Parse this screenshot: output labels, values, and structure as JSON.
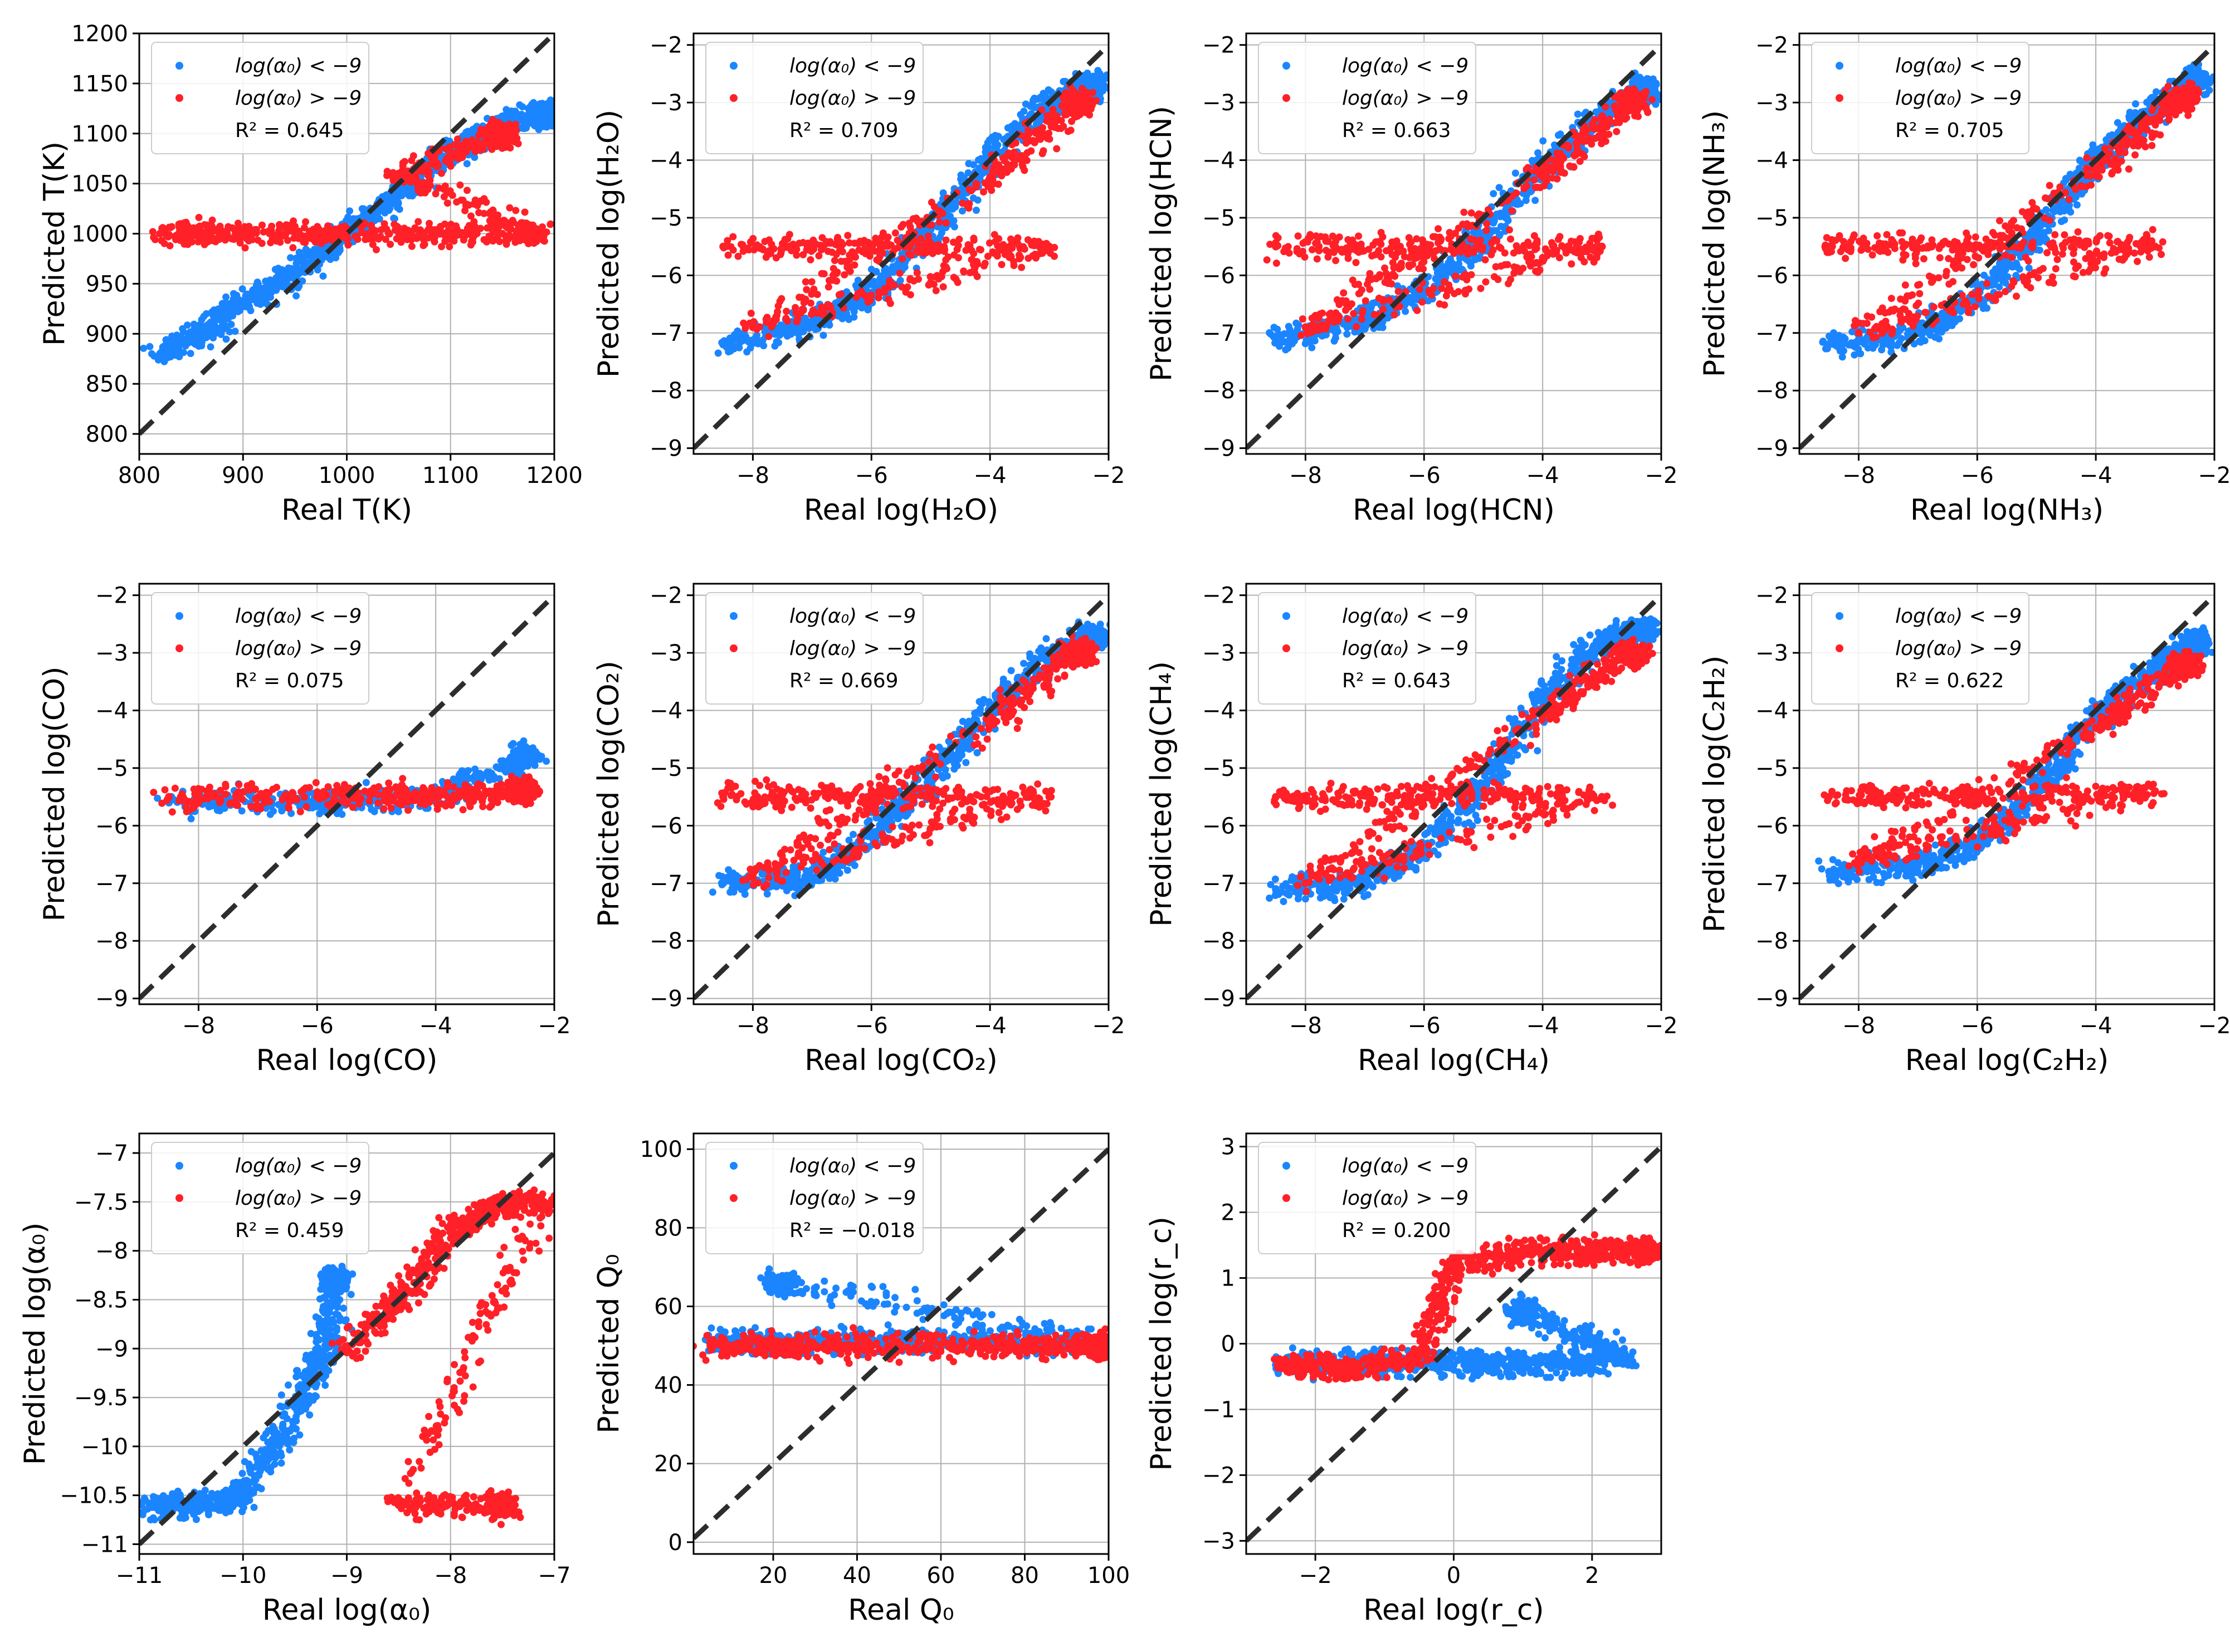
{
  "figure": {
    "legend": {
      "blue_label": "log(α₀) < −9",
      "red_label": "log(α₀) > −9"
    },
    "colors": {
      "blue": "#1a85ff",
      "red": "#ff2028",
      "diag": "#2d2d2d",
      "grid": "#b0b0b0"
    }
  },
  "chart_data": [
    {
      "type": "scatter",
      "id": "T",
      "xlabel": "Real T(K)",
      "ylabel": "Predicted T(K)",
      "xlim": [
        800,
        1200
      ],
      "ylim": [
        780,
        1200
      ],
      "xticks": [
        800,
        900,
        1000,
        1100,
        1200
      ],
      "yticks": [
        800,
        850,
        900,
        950,
        1000,
        1050,
        1100,
        1150,
        1200
      ],
      "r2": "R² = 0.645",
      "series": [
        {
          "name": "log(α₀) < −9",
          "color": "#1a85ff",
          "values": [
            [
              820,
              880
            ],
            [
              860,
              900
            ],
            [
              900,
              930
            ],
            [
              950,
              960
            ],
            [
              1000,
              1000
            ],
            [
              1050,
              1040
            ],
            [
              1100,
              1080
            ],
            [
              1150,
              1110
            ],
            [
              1190,
              1120
            ]
          ]
        },
        {
          "name": "log(α₀) > −9",
          "color": "#ff2028",
          "values": [
            [
              820,
              1000
            ],
            [
              900,
              1000
            ],
            [
              1000,
              1000
            ],
            [
              1100,
              1000
            ],
            [
              1190,
              1000
            ],
            [
              1050,
              1060
            ],
            [
              1150,
              1100
            ]
          ]
        }
      ]
    },
    {
      "type": "scatter",
      "id": "H2O",
      "xlabel": "Real log(H₂O)",
      "ylabel": "Predicted log(H₂O)",
      "xlim": [
        -9,
        -2
      ],
      "ylim": [
        -9.1,
        -1.8
      ],
      "xticks": [
        -8,
        -6,
        -4,
        -2
      ],
      "yticks": [
        -9,
        -8,
        -7,
        -6,
        -5,
        -4,
        -3,
        -2
      ],
      "r2": "R² = 0.709",
      "series": [
        {
          "name": "log(α₀) < −9",
          "color": "#1a85ff",
          "values": [
            [
              -8.5,
              -7.2
            ],
            [
              -7,
              -6.8
            ],
            [
              -6,
              -6.3
            ],
            [
              -5,
              -5.2
            ],
            [
              -4,
              -4
            ],
            [
              -3,
              -3
            ],
            [
              -2.3,
              -2.7
            ]
          ]
        },
        {
          "name": "log(α₀) > −9",
          "color": "#ff2028",
          "values": [
            [
              -8.5,
              -5.5
            ],
            [
              -6,
              -5.5
            ],
            [
              -3,
              -5.5
            ],
            [
              -8,
              -6.9
            ],
            [
              -4,
              -4.3
            ],
            [
              -2.5,
              -3
            ]
          ]
        }
      ]
    },
    {
      "type": "scatter",
      "id": "HCN",
      "xlabel": "Real log(HCN)",
      "ylabel": "Predicted log(HCN)",
      "xlim": [
        -9,
        -2
      ],
      "ylim": [
        -9.1,
        -1.8
      ],
      "xticks": [
        -8,
        -6,
        -4,
        -2
      ],
      "yticks": [
        -9,
        -8,
        -7,
        -6,
        -5,
        -4,
        -3,
        -2
      ],
      "r2": "R² = 0.663",
      "series": [
        {
          "name": "log(α₀) < −9",
          "color": "#1a85ff",
          "values": [
            [
              -8.5,
              -7.1
            ],
            [
              -7,
              -6.8
            ],
            [
              -6,
              -6.3
            ],
            [
              -5,
              -5.3
            ],
            [
              -4,
              -4.1
            ],
            [
              -3,
              -3.2
            ],
            [
              -2.3,
              -2.8
            ]
          ]
        },
        {
          "name": "log(α₀) > −9",
          "color": "#ff2028",
          "values": [
            [
              -8.5,
              -5.5
            ],
            [
              -6,
              -5.5
            ],
            [
              -3,
              -5.5
            ],
            [
              -8,
              -6.9
            ],
            [
              -4,
              -4.3
            ],
            [
              -2.5,
              -3
            ]
          ]
        }
      ]
    },
    {
      "type": "scatter",
      "id": "NH3",
      "xlabel": "Real log(NH₃)",
      "ylabel": "Predicted log(NH₃)",
      "xlim": [
        -9,
        -2
      ],
      "ylim": [
        -9.1,
        -1.8
      ],
      "xticks": [
        -8,
        -6,
        -4,
        -2
      ],
      "yticks": [
        -9,
        -8,
        -7,
        -6,
        -5,
        -4,
        -3,
        -2
      ],
      "r2": "R² = 0.705",
      "series": [
        {
          "name": "log(α₀) < −9",
          "color": "#1a85ff",
          "values": [
            [
              -8.5,
              -7.2
            ],
            [
              -7,
              -7
            ],
            [
              -6,
              -6.4
            ],
            [
              -5,
              -5.3
            ],
            [
              -4,
              -4
            ],
            [
              -3,
              -3.1
            ],
            [
              -2.3,
              -2.6
            ]
          ]
        },
        {
          "name": "log(α₀) > −9",
          "color": "#ff2028",
          "values": [
            [
              -8.5,
              -5.5
            ],
            [
              -6,
              -5.5
            ],
            [
              -3,
              -5.5
            ],
            [
              -8,
              -7
            ],
            [
              -4,
              -4.2
            ],
            [
              -2.5,
              -2.9
            ]
          ]
        }
      ]
    },
    {
      "type": "scatter",
      "id": "CO",
      "xlabel": "Real log(CO)",
      "ylabel": "Predicted log(CO)",
      "xlim": [
        -9,
        -2
      ],
      "ylim": [
        -9.1,
        -1.8
      ],
      "xticks": [
        -8,
        -6,
        -4,
        -2
      ],
      "yticks": [
        -9,
        -8,
        -7,
        -6,
        -5,
        -4,
        -3,
        -2
      ],
      "r2": "R² = 0.075",
      "series": [
        {
          "name": "log(α₀) < −9",
          "color": "#1a85ff",
          "values": [
            [
              -8.5,
              -5.6
            ],
            [
              -6,
              -5.6
            ],
            [
              -4,
              -5.5
            ],
            [
              -2.5,
              -4.8
            ]
          ]
        },
        {
          "name": "log(α₀) > −9",
          "color": "#ff2028",
          "values": [
            [
              -8.5,
              -5.5
            ],
            [
              -6,
              -5.5
            ],
            [
              -4,
              -5.5
            ],
            [
              -2.5,
              -5.4
            ]
          ]
        }
      ]
    },
    {
      "type": "scatter",
      "id": "CO2",
      "xlabel": "Real log(CO₂)",
      "ylabel": "Predicted log(CO₂)",
      "xlim": [
        -9,
        -2
      ],
      "ylim": [
        -9.1,
        -1.8
      ],
      "xticks": [
        -8,
        -6,
        -4,
        -2
      ],
      "yticks": [
        -9,
        -8,
        -7,
        -6,
        -5,
        -4,
        -3,
        -2
      ],
      "r2": "R² = 0.669",
      "series": [
        {
          "name": "log(α₀) < −9",
          "color": "#1a85ff",
          "values": [
            [
              -8.5,
              -7
            ],
            [
              -7,
              -6.9
            ],
            [
              -6,
              -6.2
            ],
            [
              -5,
              -5.2
            ],
            [
              -4,
              -4
            ],
            [
              -3,
              -3.1
            ],
            [
              -2.3,
              -2.7
            ]
          ]
        },
        {
          "name": "log(α₀) > −9",
          "color": "#ff2028",
          "values": [
            [
              -8.5,
              -5.5
            ],
            [
              -6,
              -5.5
            ],
            [
              -3,
              -5.5
            ],
            [
              -8,
              -6.9
            ],
            [
              -4,
              -4.2
            ],
            [
              -2.5,
              -3
            ]
          ]
        }
      ]
    },
    {
      "type": "scatter",
      "id": "CH4",
      "xlabel": "Real log(CH₄)",
      "ylabel": "Predicted log(CH₄)",
      "xlim": [
        -9,
        -2
      ],
      "ylim": [
        -9.1,
        -1.8
      ],
      "xticks": [
        -8,
        -6,
        -4,
        -2
      ],
      "yticks": [
        -9,
        -8,
        -7,
        -6,
        -5,
        -4,
        -3,
        -2
      ],
      "r2": "R² = 0.643",
      "series": [
        {
          "name": "log(α₀) < −9",
          "color": "#1a85ff",
          "values": [
            [
              -8.5,
              -7.1
            ],
            [
              -7,
              -7
            ],
            [
              -6,
              -6.4
            ],
            [
              -5,
              -5.3
            ],
            [
              -4,
              -3.8
            ],
            [
              -3,
              -2.8
            ],
            [
              -2.3,
              -2.6
            ]
          ]
        },
        {
          "name": "log(α₀) > −9",
          "color": "#ff2028",
          "values": [
            [
              -8.5,
              -5.5
            ],
            [
              -6,
              -5.5
            ],
            [
              -3,
              -5.5
            ],
            [
              -8,
              -7
            ],
            [
              -4,
              -4.1
            ],
            [
              -2.5,
              -3
            ]
          ]
        }
      ]
    },
    {
      "type": "scatter",
      "id": "C2H2",
      "xlabel": "Real log(C₂H₂)",
      "ylabel": "Predicted log(C₂H₂)",
      "xlim": [
        -9,
        -2
      ],
      "ylim": [
        -9.1,
        -1.8
      ],
      "xticks": [
        -8,
        -6,
        -4,
        -2
      ],
      "yticks": [
        -9,
        -8,
        -7,
        -6,
        -5,
        -4,
        -3,
        -2
      ],
      "r2": "R² = 0.622",
      "series": [
        {
          "name": "log(α₀) < −9",
          "color": "#1a85ff",
          "values": [
            [
              -8.5,
              -6.8
            ],
            [
              -7,
              -6.7
            ],
            [
              -6,
              -6.3
            ],
            [
              -5,
              -5.4
            ],
            [
              -4,
              -4.1
            ],
            [
              -3,
              -3.3
            ],
            [
              -2.3,
              -2.8
            ]
          ]
        },
        {
          "name": "log(α₀) > −9",
          "color": "#ff2028",
          "values": [
            [
              -8.5,
              -5.5
            ],
            [
              -6,
              -5.5
            ],
            [
              -3,
              -5.4
            ],
            [
              -8,
              -6.6
            ],
            [
              -4,
              -4.3
            ],
            [
              -2.5,
              -3.2
            ]
          ]
        }
      ]
    },
    {
      "type": "scatter",
      "id": "alpha0",
      "xlabel": "Real log(α₀)",
      "ylabel": "Predicted log(α₀)",
      "xlim": [
        -11,
        -7
      ],
      "ylim": [
        -11.1,
        -6.8
      ],
      "xticks": [
        -11,
        -10,
        -9,
        -8,
        -7
      ],
      "yticks": [
        -11.0,
        -10.5,
        -10.0,
        -9.5,
        -9.0,
        -8.5,
        -8.0,
        -7.5,
        -7.0
      ],
      "r2": "R² = 0.459",
      "series": [
        {
          "name": "log(α₀) < −9",
          "color": "#1a85ff",
          "values": [
            [
              -10.9,
              -10.6
            ],
            [
              -10.5,
              -10.6
            ],
            [
              -10,
              -10.5
            ],
            [
              -9.5,
              -9.6
            ],
            [
              -9.2,
              -9
            ],
            [
              -9.1,
              -8.3
            ]
          ]
        },
        {
          "name": "log(α₀) > −9",
          "color": "#ff2028",
          "values": [
            [
              -9,
              -9
            ],
            [
              -8.5,
              -8.5
            ],
            [
              -8,
              -7.8
            ],
            [
              -7.5,
              -7.5
            ],
            [
              -7.1,
              -7.5
            ],
            [
              -8.5,
              -10.6
            ],
            [
              -7.5,
              -10.6
            ]
          ]
        }
      ]
    },
    {
      "type": "scatter",
      "id": "Q0",
      "xlabel": "Real Q₀",
      "ylabel": "Predicted Q₀",
      "xlim": [
        1,
        100
      ],
      "ylim": [
        -3,
        104
      ],
      "xticks": [
        20,
        40,
        60,
        80,
        100
      ],
      "yticks": [
        0,
        20,
        40,
        60,
        80,
        100
      ],
      "r2": "R² = −0.018",
      "series": [
        {
          "name": "log(α₀) < −9",
          "color": "#1a85ff",
          "values": [
            [
              5,
              51
            ],
            [
              25,
              51
            ],
            [
              50,
              51
            ],
            [
              75,
              51
            ],
            [
              98,
              51
            ],
            [
              22,
              66
            ]
          ]
        },
        {
          "name": "log(α₀) > −9",
          "color": "#ff2028",
          "values": [
            [
              5,
              50
            ],
            [
              25,
              50
            ],
            [
              50,
              50
            ],
            [
              75,
              50
            ],
            [
              98,
              50
            ]
          ]
        }
      ]
    },
    {
      "type": "scatter",
      "id": "rc",
      "xlabel": "Real log(r_c)",
      "ylabel": "Predicted log(r_c)",
      "xlim": [
        -3,
        3
      ],
      "ylim": [
        -3.2,
        3.2
      ],
      "xticks": [
        -2,
        0,
        2
      ],
      "yticks": [
        -3,
        -2,
        -1,
        0,
        1,
        2,
        3
      ],
      "r2": "R² = 0.200",
      "series": [
        {
          "name": "log(α₀) < −9",
          "color": "#1a85ff",
          "values": [
            [
              -2.5,
              -0.3
            ],
            [
              -1.5,
              -0.3
            ],
            [
              -0.5,
              -0.3
            ],
            [
              0.5,
              -0.3
            ],
            [
              1.5,
              -0.3
            ],
            [
              2.5,
              -0.2
            ],
            [
              1,
              0.5
            ]
          ]
        },
        {
          "name": "log(α₀) > −9",
          "color": "#ff2028",
          "values": [
            [
              -2.5,
              -0.3
            ],
            [
              -1.5,
              -0.4
            ],
            [
              -0.5,
              -0.2
            ],
            [
              0,
              1.2
            ],
            [
              1,
              1.4
            ],
            [
              2,
              1.4
            ],
            [
              2.8,
              1.4
            ]
          ]
        }
      ]
    }
  ]
}
